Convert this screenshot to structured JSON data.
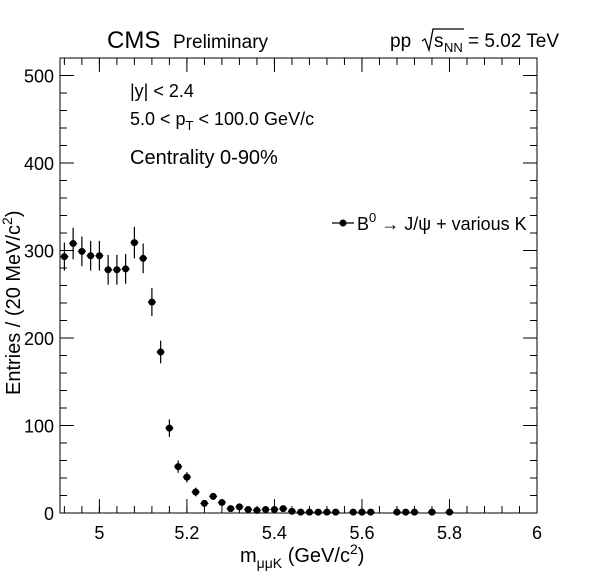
{
  "header": {
    "experiment": "CMS",
    "status": "Preliminary",
    "collision_prefix": "pp",
    "energy_sub": "NN",
    "energy_suffix": "= 5.02 TeV"
  },
  "annotations": {
    "rapidity": "|y| < 2.4",
    "pt_pre": "5.0 < p",
    "pt_sub": "T",
    "pt_post": " < 100.0 GeV/c",
    "centrality": "Centrality 0-90%"
  },
  "legend": {
    "position": "upper-right",
    "label_pre": "B",
    "label_sup": "0",
    "label_post": " → J/ψ + various K"
  },
  "chart_data": {
    "type": "scatter",
    "xlabel_pre": "m",
    "xlabel_sub": "μμK",
    "xlabel_post": " (GeV/c",
    "xlabel_sup": "2",
    "xlabel_end": ")",
    "ylabel_pre": "Entries / (20 MeV/c",
    "ylabel_sup": "2",
    "ylabel_end": ")",
    "xlim": [
      4.91,
      6.0
    ],
    "ylim": [
      0,
      520
    ],
    "xticks": [
      5.0,
      5.2,
      5.4,
      5.6,
      5.8,
      6.0
    ],
    "xtick_labels": [
      "5",
      "5.2",
      "5.4",
      "5.6",
      "5.8",
      "6"
    ],
    "yticks": [
      0,
      100,
      200,
      300,
      400,
      500
    ],
    "ytick_labels": [
      "0",
      "100",
      "200",
      "300",
      "400",
      "500"
    ],
    "grid": false,
    "series": [
      {
        "x": [
          4.92,
          4.94,
          4.96,
          4.98,
          5.0,
          5.02,
          5.04,
          5.06,
          5.08,
          5.1,
          5.12,
          5.14,
          5.16,
          5.18,
          5.2,
          5.22,
          5.24,
          5.26,
          5.28,
          5.3,
          5.32,
          5.34,
          5.36,
          5.38,
          5.4,
          5.42,
          5.44,
          5.46,
          5.48,
          5.5,
          5.52,
          5.54,
          5.58,
          5.6,
          5.62,
          5.68,
          5.7,
          5.72,
          5.76,
          5.8
        ],
        "y": [
          293,
          308,
          299,
          294,
          294,
          278,
          278,
          279,
          309,
          291,
          241,
          184,
          97,
          53,
          41,
          24,
          11,
          19,
          12,
          5,
          7,
          4,
          3,
          4,
          4,
          5,
          2,
          1,
          1,
          1,
          1,
          1,
          1,
          1,
          1,
          1,
          1,
          1,
          1,
          1
        ],
        "err": [
          16,
          18,
          17,
          17,
          17,
          17,
          17,
          17,
          18,
          17,
          16,
          13,
          10,
          7,
          6,
          5,
          3,
          4,
          3,
          2,
          3,
          2,
          2,
          2,
          2,
          2,
          1,
          1,
          1,
          1,
          1,
          1,
          1,
          1,
          1,
          1,
          1,
          1,
          1,
          1
        ]
      }
    ]
  }
}
